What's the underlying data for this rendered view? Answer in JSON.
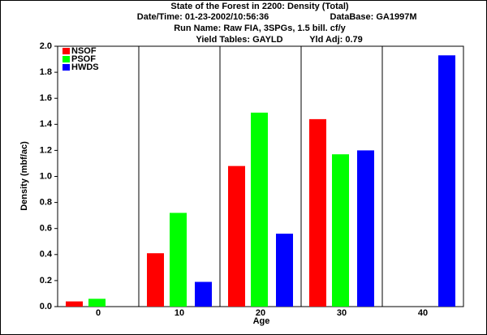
{
  "chart_data": {
    "type": "bar",
    "title": "State of the Forest in 2200: Density (Total)",
    "subtitle_lines": [
      [
        "Date/Time: 01-23-2002/10:56:36",
        "DataBase: GA1997M"
      ],
      [
        "Run Name: Raw FIA, 3SPGs, 1.5 bill. cf/y"
      ],
      [
        "Yield Tables: GAYLD",
        "Yld Adj: 0.79"
      ]
    ],
    "x_label": "Age",
    "y_label": "Density (mbf/ac)",
    "categories": [
      "0",
      "10",
      "20",
      "30",
      "40"
    ],
    "series": [
      {
        "name": "NSOF",
        "color": "#ff0000",
        "values": [
          0.04,
          0.41,
          1.08,
          1.44,
          null
        ]
      },
      {
        "name": "PSOF",
        "color": "#00ff00",
        "values": [
          0.06,
          0.72,
          1.49,
          1.17,
          null
        ]
      },
      {
        "name": "HWDS",
        "color": "#0000ff",
        "values": [
          null,
          0.19,
          0.56,
          1.2,
          1.93
        ]
      }
    ],
    "ylim": [
      0,
      2
    ],
    "yticks": [
      {
        "value": 0,
        "label": "0.0"
      },
      0.2,
      0.4,
      0.6,
      0.8,
      {
        "value": 1,
        "label": "1.0"
      },
      1.2,
      1.4,
      1.6,
      1.8,
      {
        "value": 2,
        "label": "2.0"
      }
    ],
    "legend": "top-left",
    "category_dividers": true
  }
}
